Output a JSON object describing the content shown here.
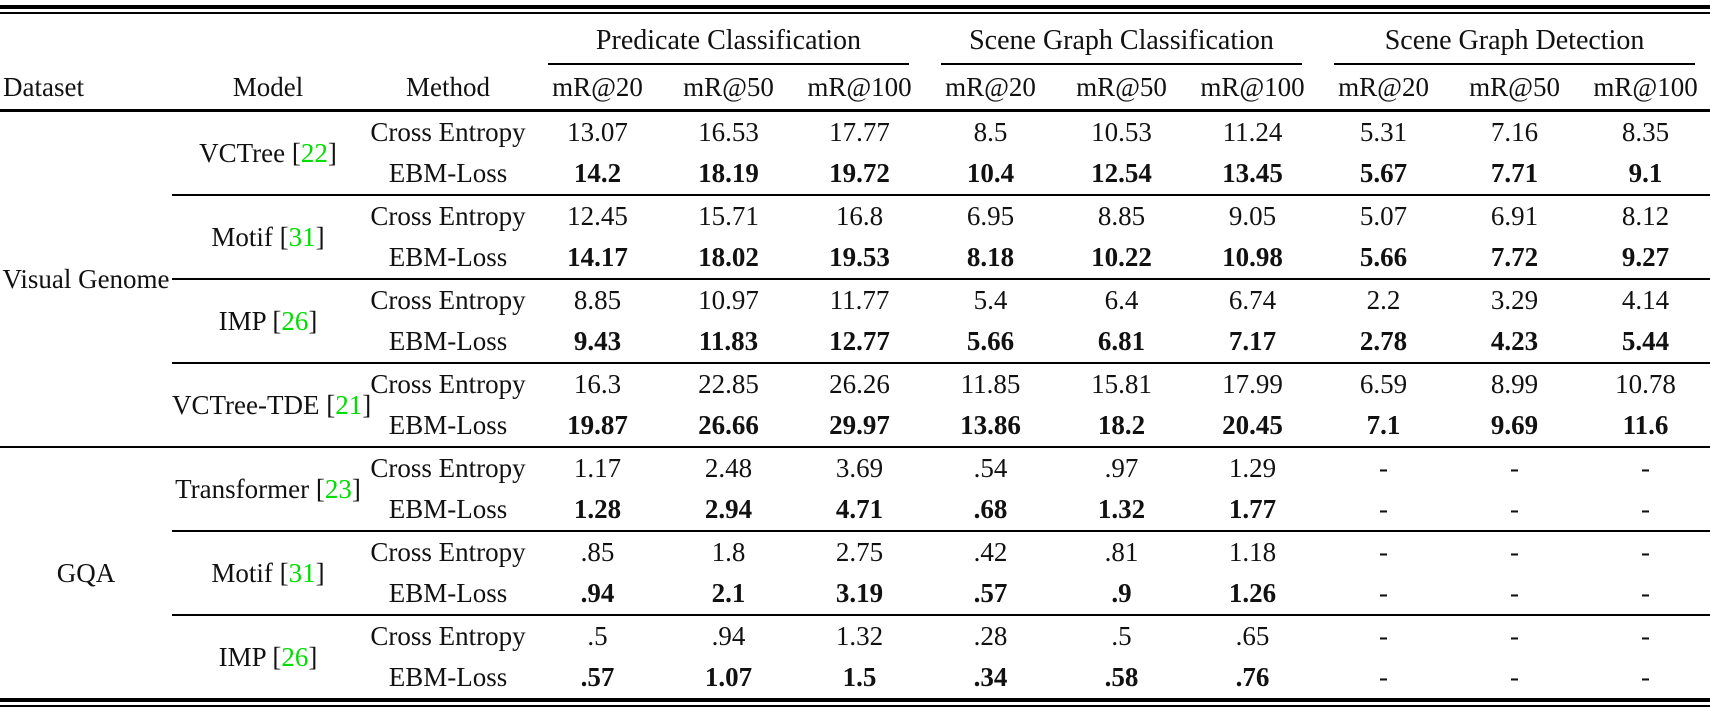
{
  "table": {
    "citation_color": "#00dd00",
    "header": {
      "dataset": "Dataset",
      "model": "Model",
      "method": "Method"
    },
    "column_groups": [
      {
        "label": "Predicate Classification",
        "metrics": [
          "mR@20",
          "mR@50",
          "mR@100"
        ]
      },
      {
        "label": "Scene Graph Classification",
        "metrics": [
          "mR@20",
          "mR@50",
          "mR@100"
        ]
      },
      {
        "label": "Scene Graph Detection",
        "metrics": [
          "mR@20",
          "mR@50",
          "mR@100"
        ]
      }
    ],
    "datasets": [
      {
        "name": "Visual Genome",
        "models": [
          {
            "name": "VCTree",
            "cite": "22",
            "rows": [
              {
                "method": "Cross Entropy",
                "bold": false,
                "values": [
                  "13.07",
                  "16.53",
                  "17.77",
                  "8.5",
                  "10.53",
                  "11.24",
                  "5.31",
                  "7.16",
                  "8.35"
                ]
              },
              {
                "method": "EBM-Loss",
                "bold": true,
                "values": [
                  "14.2",
                  "18.19",
                  "19.72",
                  "10.4",
                  "12.54",
                  "13.45",
                  "5.67",
                  "7.71",
                  "9.1"
                ]
              }
            ]
          },
          {
            "name": "Motif",
            "cite": "31",
            "rows": [
              {
                "method": "Cross Entropy",
                "bold": false,
                "values": [
                  "12.45",
                  "15.71",
                  "16.8",
                  "6.95",
                  "8.85",
                  "9.05",
                  "5.07",
                  "6.91",
                  "8.12"
                ]
              },
              {
                "method": "EBM-Loss",
                "bold": true,
                "values": [
                  "14.17",
                  "18.02",
                  "19.53",
                  "8.18",
                  "10.22",
                  "10.98",
                  "5.66",
                  "7.72",
                  "9.27"
                ]
              }
            ]
          },
          {
            "name": "IMP",
            "cite": "26",
            "rows": [
              {
                "method": "Cross Entropy",
                "bold": false,
                "values": [
                  "8.85",
                  "10.97",
                  "11.77",
                  "5.4",
                  "6.4",
                  "6.74",
                  "2.2",
                  "3.29",
                  "4.14"
                ]
              },
              {
                "method": "EBM-Loss",
                "bold": true,
                "values": [
                  "9.43",
                  "11.83",
                  "12.77",
                  "5.66",
                  "6.81",
                  "7.17",
                  "2.78",
                  "4.23",
                  "5.44"
                ]
              }
            ]
          },
          {
            "name": "VCTree-TDE",
            "cite": "21",
            "rows": [
              {
                "method": "Cross Entropy",
                "bold": false,
                "values": [
                  "16.3",
                  "22.85",
                  "26.26",
                  "11.85",
                  "15.81",
                  "17.99",
                  "6.59",
                  "8.99",
                  "10.78"
                ]
              },
              {
                "method": "EBM-Loss",
                "bold": true,
                "values": [
                  "19.87",
                  "26.66",
                  "29.97",
                  "13.86",
                  "18.2",
                  "20.45",
                  "7.1",
                  "9.69",
                  "11.6"
                ]
              }
            ]
          }
        ]
      },
      {
        "name": "GQA",
        "models": [
          {
            "name": "Transformer",
            "cite": "23",
            "rows": [
              {
                "method": "Cross Entropy",
                "bold": false,
                "values": [
                  "1.17",
                  "2.48",
                  "3.69",
                  ".54",
                  ".97",
                  "1.29",
                  "-",
                  "-",
                  "-"
                ]
              },
              {
                "method": "EBM-Loss",
                "bold": true,
                "values": [
                  "1.28",
                  "2.94",
                  "4.71",
                  ".68",
                  "1.32",
                  "1.77",
                  "-",
                  "-",
                  "-"
                ]
              }
            ]
          },
          {
            "name": "Motif",
            "cite": "31",
            "rows": [
              {
                "method": "Cross Entropy",
                "bold": false,
                "values": [
                  ".85",
                  "1.8",
                  "2.75",
                  ".42",
                  ".81",
                  "1.18",
                  "-",
                  "-",
                  "-"
                ]
              },
              {
                "method": "EBM-Loss",
                "bold": true,
                "values": [
                  ".94",
                  "2.1",
                  "3.19",
                  ".57",
                  ".9",
                  "1.26",
                  "-",
                  "-",
                  "-"
                ]
              }
            ]
          },
          {
            "name": "IMP",
            "cite": "26",
            "rows": [
              {
                "method": "Cross Entropy",
                "bold": false,
                "values": [
                  ".5",
                  ".94",
                  "1.32",
                  ".28",
                  ".5",
                  ".65",
                  "-",
                  "-",
                  "-"
                ]
              },
              {
                "method": "EBM-Loss",
                "bold": true,
                "values": [
                  ".57",
                  "1.07",
                  "1.5",
                  ".34",
                  ".58",
                  ".76",
                  "-",
                  "-",
                  "-"
                ]
              }
            ]
          }
        ]
      }
    ]
  }
}
